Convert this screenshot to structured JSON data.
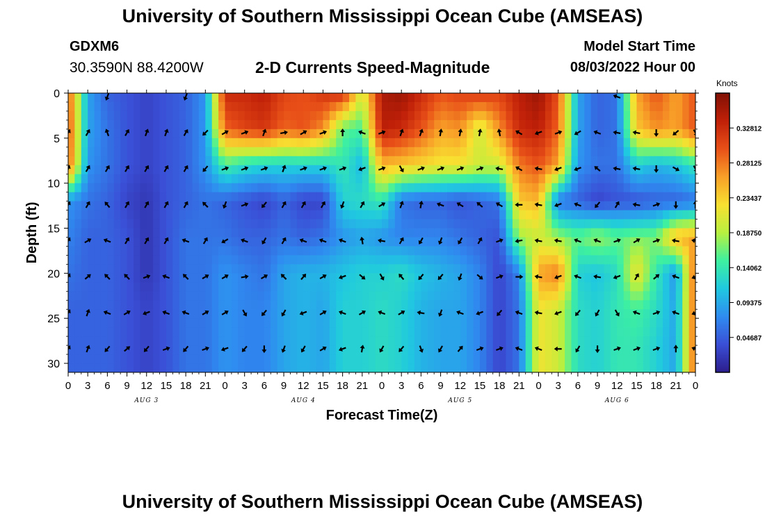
{
  "header": {
    "title": "University of Southern Mississippi Ocean Cube (AMSEAS)",
    "station": "GDXM6",
    "coords": "30.3590N  88.4200W",
    "plot_title": "2-D Currents Speed-Magnitude",
    "model_start_label": "Model Start Time",
    "model_start_value": "08/03/2022 Hour 00"
  },
  "footer": {
    "title": "University of Southern Mississippi Ocean Cube (AMSEAS)"
  },
  "colors": {
    "scale": [
      "#2c1d8c",
      "#3a4fd6",
      "#2f8cf0",
      "#20c8e0",
      "#3ef0a0",
      "#b8f040",
      "#f8e030",
      "#f8a028",
      "#e85018",
      "#c02008",
      "#801004"
    ]
  },
  "chart_data": {
    "type": "heatmap",
    "xlabel": "Forecast Time(Z)",
    "ylabel": "Depth (ft)",
    "x_ticks": [
      "0",
      "3",
      "6",
      "9",
      "12",
      "15",
      "18",
      "21",
      "0",
      "3",
      "6",
      "9",
      "12",
      "15",
      "18",
      "21",
      "0",
      "3",
      "6",
      "9",
      "12",
      "15",
      "18",
      "21",
      "0",
      "3",
      "6",
      "9",
      "12",
      "15",
      "18",
      "21",
      "0"
    ],
    "x_range": [
      0,
      96
    ],
    "day_labels": [
      {
        "label": "AUG 3",
        "at_hour": 12
      },
      {
        "label": "AUG 4",
        "at_hour": 36
      },
      {
        "label": "AUG 5",
        "at_hour": 60
      },
      {
        "label": "AUG 6",
        "at_hour": 84
      }
    ],
    "y_ticks": [
      "0",
      "5",
      "10",
      "15",
      "20",
      "25",
      "30"
    ],
    "y_range": [
      0,
      31
    ],
    "colorbar": {
      "unit": "Knots",
      "ticks": [
        "0.32812",
        "0.28125",
        "0.23437",
        "0.18750",
        "0.14062",
        "0.09375",
        "0.04687"
      ],
      "tick_values": [
        0.32812,
        0.28125,
        0.23437,
        0.1875,
        0.14062,
        0.09375,
        0.04687
      ],
      "range": [
        0,
        0.375
      ]
    },
    "depths": [
      0,
      4,
      8,
      12,
      16,
      20,
      24,
      28
    ],
    "hours": [
      0,
      3,
      6,
      9,
      12,
      15,
      18,
      21,
      24,
      27,
      30,
      33,
      36,
      39,
      42,
      45,
      48,
      51,
      54,
      57,
      60,
      63,
      66,
      69,
      72,
      75,
      78,
      81,
      84,
      87,
      90,
      93,
      96
    ],
    "speed": [
      [
        0.3,
        0.09,
        0.05,
        0.04,
        0.03,
        0.04,
        0.05,
        0.08,
        0.33,
        0.33,
        0.34,
        0.31,
        0.3,
        0.32,
        0.33,
        0.2,
        0.35,
        0.36,
        0.33,
        0.3,
        0.31,
        0.32,
        0.31,
        0.34,
        0.36,
        0.3,
        0.09,
        0.05,
        0.06,
        0.26,
        0.3,
        0.26,
        0.3
      ],
      [
        0.31,
        0.09,
        0.06,
        0.04,
        0.03,
        0.04,
        0.05,
        0.08,
        0.29,
        0.31,
        0.32,
        0.29,
        0.3,
        0.27,
        0.16,
        0.15,
        0.34,
        0.33,
        0.3,
        0.26,
        0.27,
        0.2,
        0.27,
        0.33,
        0.34,
        0.29,
        0.09,
        0.05,
        0.06,
        0.24,
        0.27,
        0.26,
        0.3
      ],
      [
        0.3,
        0.08,
        0.06,
        0.04,
        0.03,
        0.04,
        0.05,
        0.08,
        0.15,
        0.13,
        0.12,
        0.12,
        0.12,
        0.12,
        0.14,
        0.1,
        0.25,
        0.24,
        0.23,
        0.22,
        0.22,
        0.2,
        0.2,
        0.28,
        0.3,
        0.26,
        0.08,
        0.06,
        0.06,
        0.12,
        0.1,
        0.11,
        0.14
      ],
      [
        0.08,
        0.06,
        0.05,
        0.03,
        0.02,
        0.04,
        0.05,
        0.06,
        0.05,
        0.04,
        0.03,
        0.05,
        0.03,
        0.03,
        0.12,
        0.13,
        0.14,
        0.06,
        0.05,
        0.05,
        0.04,
        0.05,
        0.06,
        0.24,
        0.25,
        0.06,
        0.05,
        0.03,
        0.04,
        0.04,
        0.05,
        0.05,
        0.06
      ],
      [
        0.07,
        0.05,
        0.05,
        0.04,
        0.02,
        0.04,
        0.06,
        0.06,
        0.06,
        0.05,
        0.05,
        0.06,
        0.05,
        0.06,
        0.08,
        0.09,
        0.08,
        0.07,
        0.07,
        0.07,
        0.06,
        0.05,
        0.04,
        0.18,
        0.2,
        0.18,
        0.16,
        0.18,
        0.16,
        0.17,
        0.17,
        0.25,
        0.26
      ],
      [
        0.06,
        0.05,
        0.05,
        0.04,
        0.02,
        0.04,
        0.06,
        0.06,
        0.08,
        0.07,
        0.06,
        0.09,
        0.1,
        0.1,
        0.11,
        0.12,
        0.12,
        0.13,
        0.11,
        0.1,
        0.09,
        0.07,
        0.03,
        0.07,
        0.26,
        0.28,
        0.12,
        0.11,
        0.13,
        0.22,
        0.14,
        0.08,
        0.3
      ],
      [
        0.05,
        0.05,
        0.05,
        0.04,
        0.03,
        0.04,
        0.06,
        0.06,
        0.08,
        0.07,
        0.07,
        0.09,
        0.1,
        0.09,
        0.12,
        0.12,
        0.13,
        0.12,
        0.1,
        0.09,
        0.09,
        0.07,
        0.03,
        0.06,
        0.22,
        0.2,
        0.13,
        0.12,
        0.14,
        0.15,
        0.13,
        0.09,
        0.3
      ],
      [
        0.05,
        0.05,
        0.05,
        0.04,
        0.03,
        0.04,
        0.06,
        0.06,
        0.08,
        0.07,
        0.07,
        0.09,
        0.1,
        0.09,
        0.12,
        0.12,
        0.13,
        0.12,
        0.1,
        0.09,
        0.09,
        0.07,
        0.03,
        0.06,
        0.22,
        0.2,
        0.13,
        0.12,
        0.14,
        0.14,
        0.12,
        0.09,
        0.3
      ]
    ],
    "arrows_deg": [
      [
        null,
        null,
        250,
        null,
        null,
        null,
        250,
        null,
        null,
        null,
        null,
        null,
        null,
        null,
        null,
        null,
        null,
        null,
        null,
        null,
        null,
        null,
        null,
        null,
        null,
        null,
        null,
        null,
        160,
        null,
        null,
        null,
        null
      ],
      [
        60,
        60,
        110,
        60,
        70,
        70,
        60,
        225,
        30,
        20,
        70,
        10,
        30,
        20,
        90,
        160,
        20,
        70,
        70,
        80,
        80,
        80,
        100,
        150,
        200,
        20,
        210,
        160,
        170,
        170,
        270,
        220,
        300
      ],
      [
        70,
        60,
        60,
        60,
        60,
        60,
        60,
        230,
        20,
        20,
        20,
        70,
        20,
        20,
        20,
        200,
        20,
        300,
        20,
        20,
        20,
        20,
        170,
        150,
        170,
        200,
        200,
        140,
        170,
        170,
        270,
        330,
        300
      ],
      [
        60,
        60,
        130,
        60,
        60,
        60,
        60,
        135,
        250,
        20,
        230,
        60,
        60,
        60,
        250,
        60,
        30,
        70,
        80,
        160,
        150,
        140,
        150,
        180,
        170,
        200,
        160,
        230,
        60,
        170,
        20,
        270,
        90
      ],
      [
        60,
        30,
        160,
        60,
        60,
        60,
        160,
        60,
        210,
        160,
        240,
        60,
        160,
        160,
        160,
        100,
        170,
        60,
        240,
        250,
        240,
        60,
        20,
        190,
        170,
        170,
        160,
        160,
        20,
        30,
        20,
        170,
        170
      ],
      [
        60,
        40,
        135,
        135,
        20,
        160,
        135,
        30,
        30,
        10,
        30,
        135,
        50,
        30,
        200,
        320,
        300,
        130,
        230,
        230,
        250,
        320,
        20,
        0,
        170,
        200,
        160,
        170,
        200,
        60,
        40,
        160,
        200
      ],
      [
        60,
        70,
        160,
        30,
        200,
        160,
        160,
        30,
        30,
        300,
        230,
        240,
        200,
        30,
        160,
        30,
        160,
        30,
        170,
        250,
        160,
        200,
        230,
        160,
        170,
        200,
        230,
        240,
        300,
        160,
        20,
        160,
        200
      ],
      [
        60,
        70,
        230,
        40,
        230,
        20,
        230,
        20,
        200,
        230,
        270,
        250,
        240,
        30,
        200,
        80,
        240,
        230,
        290,
        240,
        50,
        20,
        20,
        160,
        160,
        180,
        240,
        270,
        20,
        20,
        20,
        90,
        160
      ]
    ]
  }
}
